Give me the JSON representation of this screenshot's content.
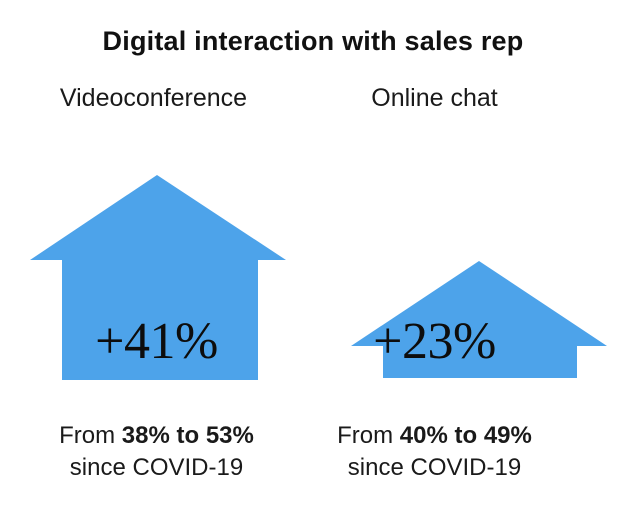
{
  "title": "Digital interaction with sales rep",
  "columns": [
    {
      "label": "Videoconference",
      "change": "+41%",
      "from_word": "From",
      "range": "38% to 53%",
      "since": "since COVID-19",
      "from_value": 38,
      "to_value": 53
    },
    {
      "label": "Online chat",
      "change": "+23%",
      "from_word": "From",
      "range": "40% to 49%",
      "since": "since COVID-19",
      "from_value": 40,
      "to_value": 49
    }
  ],
  "colors": {
    "arrow": "#4da3ea",
    "text": "#111111"
  }
}
